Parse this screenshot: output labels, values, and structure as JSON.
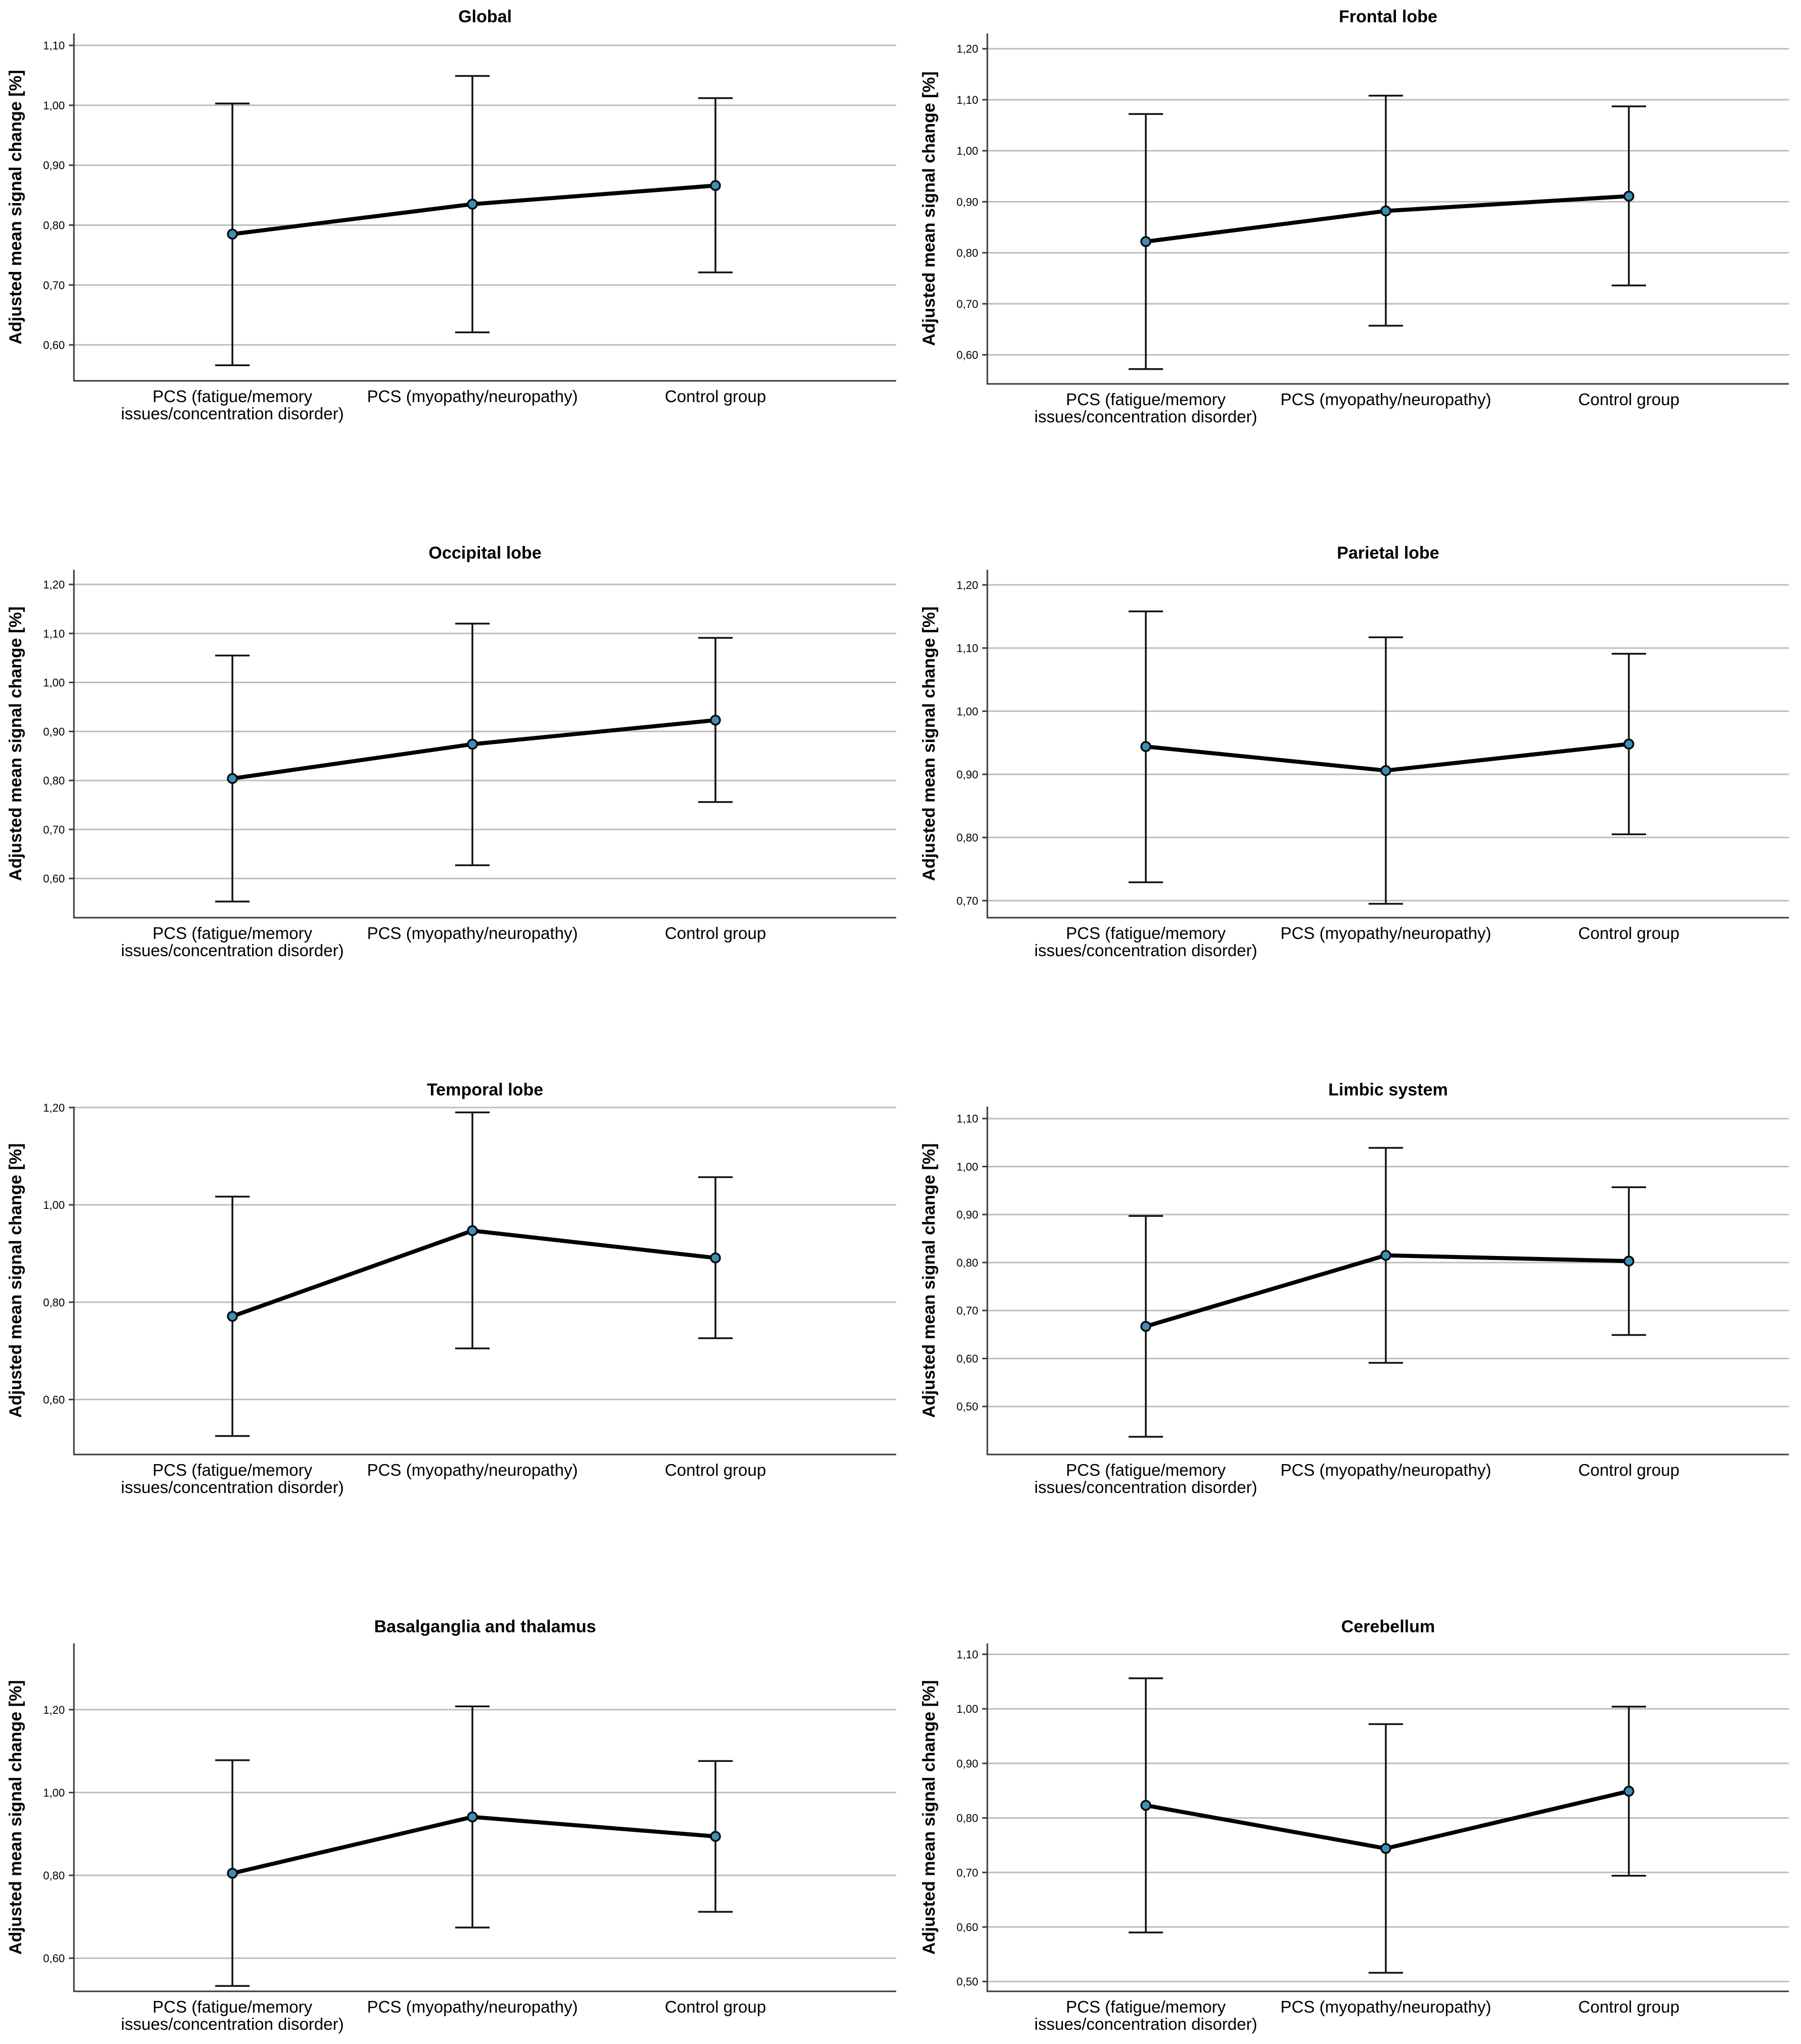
{
  "chart_data": [
    {
      "type": "line",
      "title": "Global",
      "ylabel": "Adjusted mean signal change [%]",
      "categories": [
        "PCS (fatigue/memory issues/concentration disorder)",
        "PCS (myopathy/neuropathy)",
        "Control group"
      ],
      "values": [
        0.785,
        0.835,
        0.866
      ],
      "ci_lower": [
        0.566,
        0.621,
        0.721
      ],
      "ci_upper": [
        1.003,
        1.049,
        1.012
      ],
      "yticks": [
        0.6,
        0.7,
        0.8,
        0.9,
        1.0,
        1.1
      ],
      "ytick_labels": [
        "0,60",
        "0,70",
        "0,80",
        "0,90",
        "1,00",
        "1,10"
      ],
      "ylim": [
        0.54,
        1.12
      ]
    },
    {
      "type": "line",
      "title": "Frontal lobe",
      "ylabel": "Adjusted mean signal change [%]",
      "categories": [
        "PCS (fatigue/memory issues/concentration disorder)",
        "PCS (myopathy/neuropathy)",
        "Control group"
      ],
      "values": [
        0.822,
        0.882,
        0.911
      ],
      "ci_lower": [
        0.572,
        0.657,
        0.736
      ],
      "ci_upper": [
        1.072,
        1.108,
        1.087
      ],
      "yticks": [
        0.6,
        0.7,
        0.8,
        0.9,
        1.0,
        1.1,
        1.2
      ],
      "ytick_labels": [
        "0,60",
        "0,70",
        "0,80",
        "0,90",
        "1,00",
        "1,10",
        "1,20"
      ],
      "ylim": [
        0.543,
        1.23
      ]
    },
    {
      "type": "line",
      "title": "Occipital lobe",
      "ylabel": "Adjusted mean signal change [%]",
      "categories": [
        "PCS (fatigue/memory issues/concentration disorder)",
        "PCS (myopathy/neuropathy)",
        "Control group"
      ],
      "values": [
        0.804,
        0.874,
        0.923
      ],
      "ci_lower": [
        0.553,
        0.627,
        0.756
      ],
      "ci_upper": [
        1.055,
        1.12,
        1.091
      ],
      "yticks": [
        0.6,
        0.7,
        0.8,
        0.9,
        1.0,
        1.1,
        1.2
      ],
      "ytick_labels": [
        "0,60",
        "0,70",
        "0,80",
        "0,90",
        "1,00",
        "1,10",
        "1,20"
      ],
      "ylim": [
        0.52,
        1.23
      ]
    },
    {
      "type": "line",
      "title": "Parietal lobe",
      "ylabel": "Adjusted mean signal change [%]",
      "categories": [
        "PCS (fatigue/memory issues/concentration disorder)",
        "PCS (myopathy/neuropathy)",
        "Control group"
      ],
      "values": [
        0.944,
        0.906,
        0.948
      ],
      "ci_lower": [
        0.729,
        0.695,
        0.805
      ],
      "ci_upper": [
        1.158,
        1.117,
        1.091
      ],
      "yticks": [
        0.7,
        0.8,
        0.9,
        1.0,
        1.1,
        1.2
      ],
      "ytick_labels": [
        "0,70",
        "0,80",
        "0,90",
        "1,00",
        "1,10",
        "1,20"
      ],
      "ylim": [
        0.673,
        1.224
      ]
    },
    {
      "type": "line",
      "title": "Temporal lobe",
      "ylabel": "Adjusted mean signal change [%]",
      "categories": [
        "PCS (fatigue/memory issues/concentration disorder)",
        "PCS (myopathy/neuropathy)",
        "Control group"
      ],
      "values": [
        0.771,
        0.947,
        0.891
      ],
      "ci_lower": [
        0.525,
        0.705,
        0.726
      ],
      "ci_upper": [
        1.017,
        1.19,
        1.057
      ],
      "yticks": [
        0.6,
        0.8,
        1.0,
        1.2
      ],
      "ytick_labels": [
        "0,60",
        "0,80",
        "1,00",
        "1,20"
      ],
      "ylim": [
        0.487,
        1.202
      ]
    },
    {
      "type": "line",
      "title": "Limbic system",
      "ylabel": "Adjusted mean signal change [%]",
      "categories": [
        "PCS (fatigue/memory issues/concentration disorder)",
        "PCS (myopathy/neuropathy)",
        "Control group"
      ],
      "values": [
        0.667,
        0.815,
        0.803
      ],
      "ci_lower": [
        0.437,
        0.591,
        0.649
      ],
      "ci_upper": [
        0.897,
        1.039,
        0.957
      ],
      "yticks": [
        0.5,
        0.6,
        0.7,
        0.8,
        0.9,
        1.0,
        1.1
      ],
      "ytick_labels": [
        "0,50",
        "0,60",
        "0,70",
        "0,80",
        "0,90",
        "1,00",
        "1,10"
      ],
      "ylim": [
        0.4,
        1.125
      ]
    },
    {
      "type": "line",
      "title": "Basalganglia and thalamus",
      "ylabel": "Adjusted mean signal change [%]",
      "categories": [
        "PCS (fatigue/memory issues/concentration disorder)",
        "PCS (myopathy/neuropathy)",
        "Control group"
      ],
      "values": [
        0.805,
        0.941,
        0.894
      ],
      "ci_lower": [
        0.533,
        0.674,
        0.712
      ],
      "ci_upper": [
        1.078,
        1.208,
        1.076
      ],
      "yticks": [
        0.6,
        0.8,
        1.0,
        1.2
      ],
      "ytick_labels": [
        "0,60",
        "0,80",
        "1,00",
        "1,20"
      ],
      "ylim": [
        0.52,
        1.36
      ]
    },
    {
      "type": "line",
      "title": "Cerebellum",
      "ylabel": "Adjusted mean signal change [%]",
      "categories": [
        "PCS (fatigue/memory issues/concentration disorder)",
        "PCS (myopathy/neuropathy)",
        "Control group"
      ],
      "values": [
        0.823,
        0.744,
        0.849
      ],
      "ci_lower": [
        0.59,
        0.516,
        0.694
      ],
      "ci_upper": [
        1.056,
        0.972,
        1.004
      ],
      "yticks": [
        0.5,
        0.6,
        0.7,
        0.8,
        0.9,
        1.0,
        1.1
      ],
      "ytick_labels": [
        "0,50",
        "0,60",
        "0,70",
        "0,80",
        "0,90",
        "1,00",
        "1,10"
      ],
      "ylim": [
        0.482,
        1.12
      ]
    }
  ]
}
